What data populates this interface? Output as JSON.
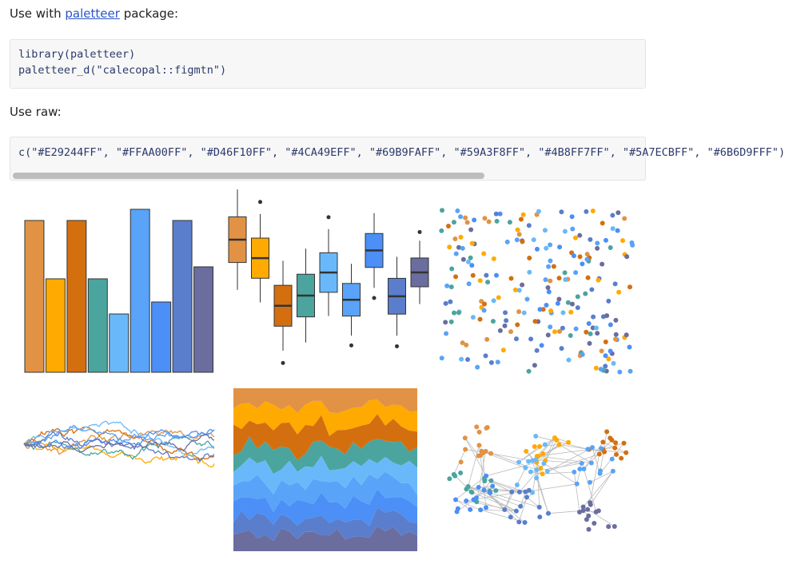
{
  "intro": {
    "prefix": "Use with",
    "link": "paletteer",
    "suffix": "package:"
  },
  "code": {
    "lines": [
      "library(paletteer)",
      "paletteer_d(\"calecopal::figmtn\")"
    ]
  },
  "raw_label": "Use raw:",
  "raw_code": "c(\"#E29244FF\", \"#FFAA00FF\", \"#D46F10FF\", \"#4CA49EFF\", \"#69B9FAFF\", \"#59A3F8FF\", \"#4B8FF7FF\", \"#5A7ECBFF\", \"#6B6D9FFF\")",
  "palette": [
    "#E29244",
    "#FFAA00",
    "#D46F10",
    "#4CA49E",
    "#69B9FA",
    "#59A3F8",
    "#4B8FF7",
    "#5A7ECB",
    "#6B6D9F"
  ],
  "bar_demo": {
    "type": "bar",
    "values": [
      190,
      117,
      190,
      117,
      73,
      204,
      88,
      190,
      132
    ],
    "ylim": [
      0,
      210
    ]
  }
}
